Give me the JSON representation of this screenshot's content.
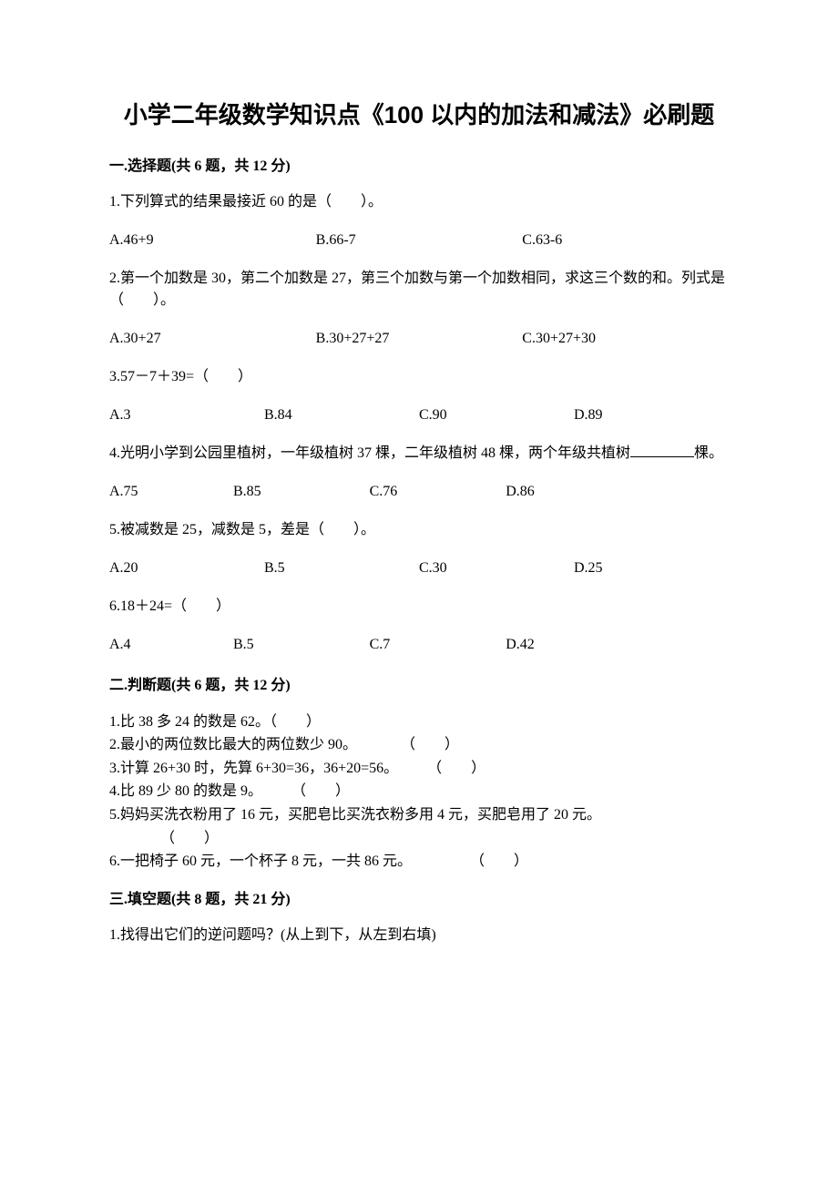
{
  "title": "小学二年级数学知识点《100 以内的加法和减法》必刷题",
  "sections": {
    "s1": {
      "header": "一.选择题(共 6 题，共 12 分)",
      "q1": {
        "text": "1.下列算式的结果最接近 60 的是（　　）。",
        "a": "A.46+9",
        "b": "B.66-7",
        "c": "C.63-6"
      },
      "q2": {
        "text": "2.第一个加数是 30，第二个加数是 27，第三个加数与第一个加数相同，求这三个数的和。列式是（　　）。",
        "a": "A.30+27",
        "b": "B.30+27+27",
        "c": "C.30+27+30"
      },
      "q3": {
        "text": "3.57－7＋39=（　　）",
        "a": "A.3",
        "b": "B.84",
        "c": "C.90",
        "d": "D.89"
      },
      "q4": {
        "text_pre": "4.光明小学到公园里植树，一年级植树 37 棵，二年级植树 48 棵，两个年级共植树",
        "text_post": "棵。",
        "a": "A.75",
        "b": "B.85",
        "c": "C.76",
        "d": "D.86"
      },
      "q5": {
        "text": "5.被减数是 25，减数是 5，差是（　　）。",
        "a": "A.20",
        "b": "B.5",
        "c": "C.30",
        "d": "D.25"
      },
      "q6": {
        "text": "6.18＋24=（　　）",
        "a": "A.4",
        "b": "B.5",
        "c": "C.7",
        "d": "D.42"
      }
    },
    "s2": {
      "header": "二.判断题(共 6 题，共 12 分)",
      "t1": "1.比 38 多 24 的数是 62。（　　）",
      "t2": "2.最小的两位数比最大的两位数少 90。　　　　（　　）",
      "t3": "3.计算 26+30 时，先算 6+30=36，36+20=56。　　　（　　）",
      "t4": "4.比 89 少 80 的数是 9。　　　（　　）",
      "t5a": "5.妈妈买洗衣粉用了 16 元，买肥皂比买洗衣粉多用 4 元，买肥皂用了 20 元。",
      "t5b": "（　　）",
      "t6": "6.一把椅子 60 元，一个杯子 8 元，一共 86 元。　　　　　（　　）"
    },
    "s3": {
      "header": "三.填空题(共 8 题，共 21 分)",
      "q1": "1.找得出它们的逆问题吗？(从上到下，从左到右填)"
    }
  }
}
